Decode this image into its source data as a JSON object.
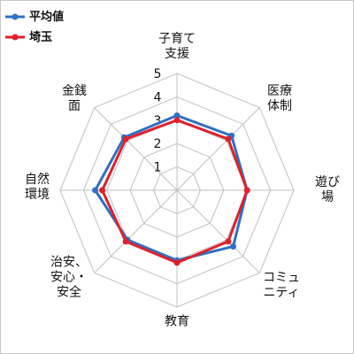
{
  "chart_data": {
    "type": "radar",
    "categories": [
      "子育て\n支援",
      "医療\n体制",
      "遊び場",
      "コミュ\nニティ",
      "教育",
      "治安、\n安心・\n安全",
      "自然\n環境",
      "金銭\n面"
    ],
    "scale": {
      "min": 0,
      "max": 5,
      "ticks": [
        "1",
        "2",
        "3",
        "4",
        "5"
      ]
    },
    "series": [
      {
        "name": "平均値",
        "color": "#2f6fc4",
        "values": [
          3.2,
          3.3,
          3.0,
          3.4,
          3.0,
          3.0,
          3.5,
          3.2
        ]
      },
      {
        "name": "埼玉",
        "color": "#e0202a",
        "values": [
          3.0,
          3.1,
          3.0,
          3.1,
          3.1,
          3.1,
          3.2,
          3.1
        ]
      }
    ],
    "legend": "top-left"
  },
  "colors": {
    "grid": "#c0c0c0",
    "background": "#ffffff"
  }
}
